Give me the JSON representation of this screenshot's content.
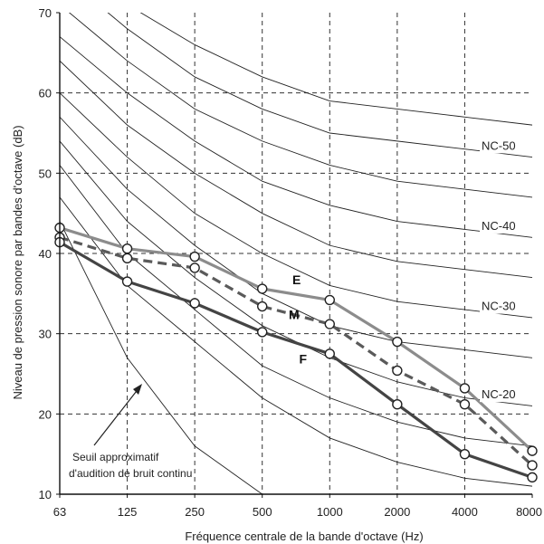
{
  "chart_data": {
    "type": "line",
    "xlabel": "Fréquence centrale de la bande d'octave (Hz)",
    "ylabel": "Niveau de pression sonore par bandes d'octave (dB)",
    "categories": [
      "63",
      "125",
      "250",
      "500",
      "1000",
      "2000",
      "4000",
      "8000"
    ],
    "ylim": [
      10,
      70
    ],
    "yticks": [
      10,
      20,
      30,
      40,
      50,
      60,
      70
    ],
    "grid": true,
    "nc_curves": [
      {
        "values": [
          47,
          36,
          29,
          22,
          17,
          14,
          12,
          11
        ]
      },
      {
        "values": [
          51,
          40,
          33,
          26,
          22,
          19,
          17,
          16
        ]
      },
      {
        "values": [
          54,
          44,
          37,
          31,
          27,
          24,
          22,
          21
        ],
        "label": "NC-20"
      },
      {
        "values": [
          57,
          48,
          41,
          35,
          31,
          29,
          28,
          27
        ]
      },
      {
        "values": [
          60,
          52,
          45,
          40,
          36,
          34,
          33,
          32
        ],
        "label": "NC-30"
      },
      {
        "values": [
          64,
          56,
          50,
          45,
          41,
          39,
          38,
          37
        ]
      },
      {
        "values": [
          67,
          60,
          54,
          49,
          46,
          44,
          43,
          42
        ],
        "label": "NC-40"
      },
      {
        "values": [
          71,
          64,
          58,
          54,
          51,
          49,
          48,
          47
        ]
      },
      {
        "values": [
          75,
          68,
          62,
          58,
          55,
          54,
          53,
          52
        ],
        "label": "NC-50"
      },
      {
        "values": [
          78,
          71,
          66,
          62,
          59,
          58,
          57,
          56
        ]
      }
    ],
    "threshold_curve": {
      "values": [
        44,
        27,
        16,
        10
      ]
    },
    "series": [
      {
        "name": "E",
        "color": "#8c8c8c",
        "dash": false,
        "values": [
          43.2,
          40.6,
          39.6,
          35.6,
          34.2,
          29.0,
          23.2,
          15.4
        ]
      },
      {
        "name": "M",
        "color": "#5a5a5a",
        "dash": true,
        "values": [
          42.0,
          39.4,
          38.2,
          33.4,
          31.2,
          25.4,
          21.2,
          13.6
        ]
      },
      {
        "name": "F",
        "color": "#444444",
        "dash": false,
        "values": [
          41.4,
          36.5,
          33.8,
          30.2,
          27.5,
          21.2,
          15.0,
          12.1
        ]
      }
    ],
    "annotation": {
      "lines": [
        "Seuil approximatif",
        "d'audition de bruit continu"
      ]
    }
  }
}
